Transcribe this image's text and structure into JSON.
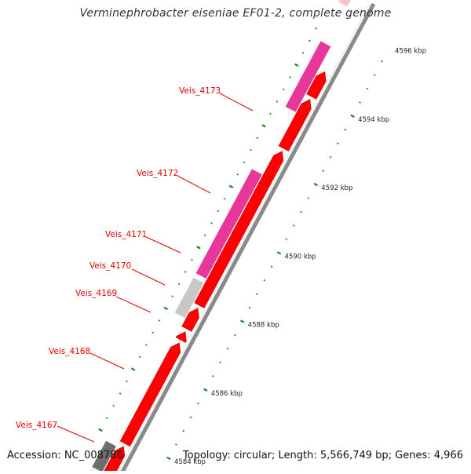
{
  "title": "Verminephrobacter eiseniae EF01-2, complete genome",
  "footer": {
    "accession": "Accession: NC_008786",
    "summary": "Topology: circular; Length: 5,566,749 bp; Genes: 4,966"
  },
  "colors": {
    "forward_cds": "#ff0000",
    "reverse_magenta": "#e8379a",
    "reverse_grey_light": "#c8c8c8",
    "reverse_grey_dark": "#6e6e6e",
    "tick_major": "#1a8a1a",
    "gene_label": "#e00000"
  },
  "axis": {
    "tick_labels": [
      {
        "label": "4584 kbp",
        "kbp": 4584
      },
      {
        "label": "4586 kbp",
        "kbp": 4586
      },
      {
        "label": "4588 kbp",
        "kbp": 4588
      },
      {
        "label": "4590 kbp",
        "kbp": 4590
      },
      {
        "label": "4592 kbp",
        "kbp": 4592
      },
      {
        "label": "4594 kbp",
        "kbp": 4594
      },
      {
        "label": "4596 kbp",
        "kbp": 4596
      }
    ]
  },
  "genes": [
    {
      "label": "Veis_4167"
    },
    {
      "label": "Veis_4168"
    },
    {
      "label": "Veis_4169"
    },
    {
      "label": "Veis_4170"
    },
    {
      "label": "Veis_4171"
    },
    {
      "label": "Veis_4172"
    },
    {
      "label": "Veis_4173"
    }
  ]
}
